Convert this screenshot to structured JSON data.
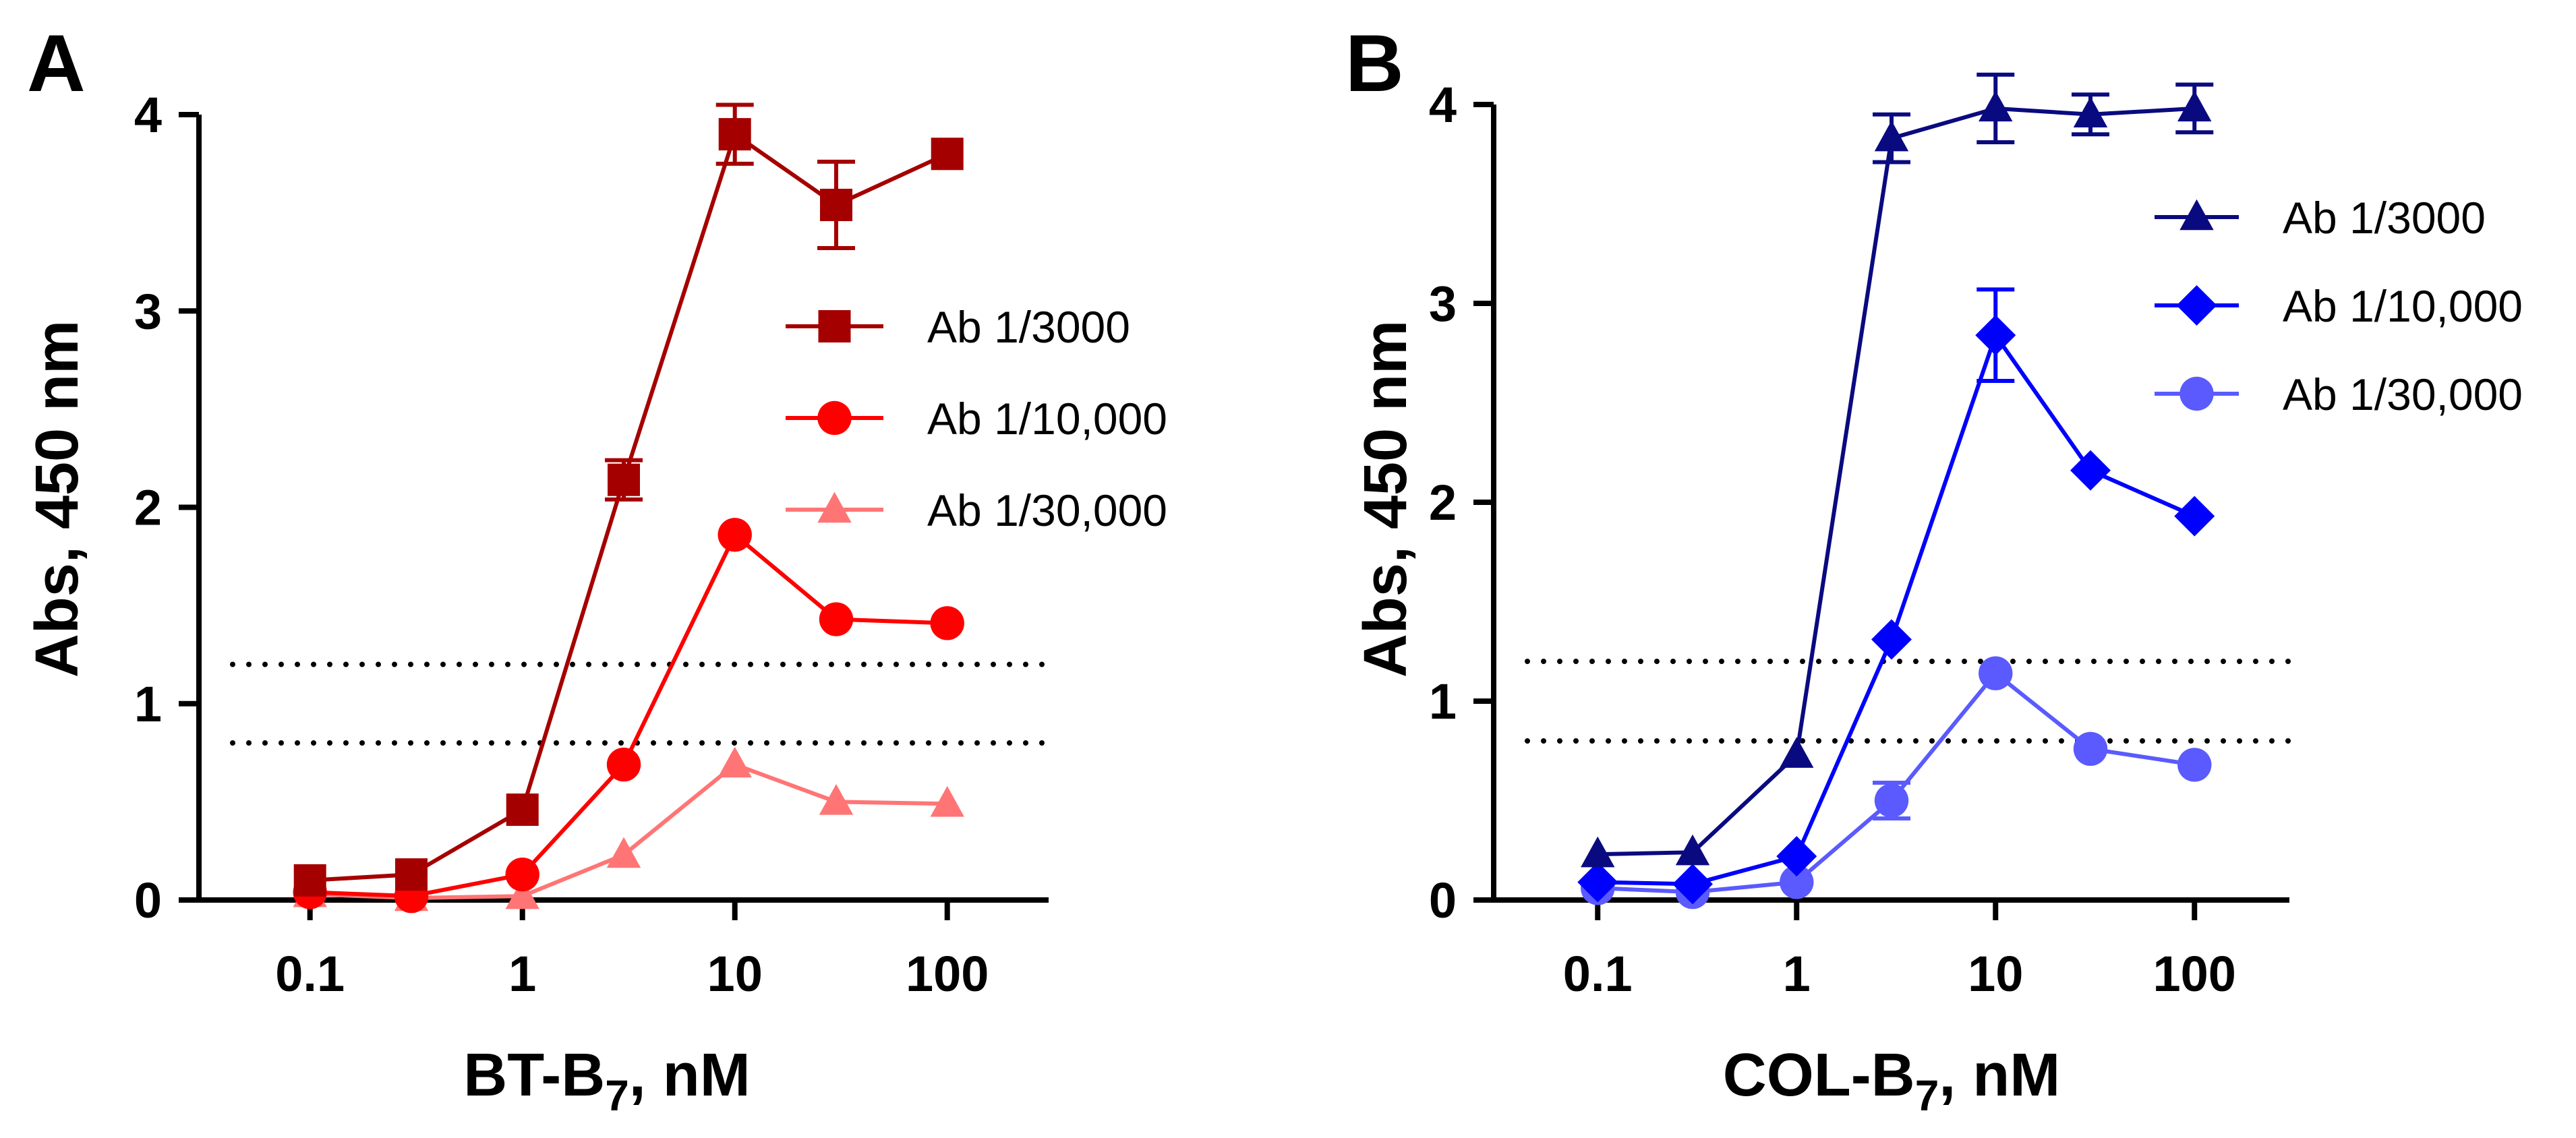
{
  "chart_data": [
    {
      "panel": "A",
      "type": "line",
      "xscale": "log",
      "xlabel": {
        "main": "BT-B",
        "sub": "7",
        "suffix": ", nM"
      },
      "ylabel": "Abs, 450 nm",
      "xlim": [
        0.03,
        300
      ],
      "ylim": [
        0,
        4
      ],
      "x_ticks": [
        0.1,
        1,
        10,
        100
      ],
      "x_tick_labels": [
        "0.1",
        "1",
        "10",
        "100"
      ],
      "y_ticks": [
        0,
        1,
        2,
        3,
        4
      ],
      "y_tick_labels": [
        "0",
        "1",
        "2",
        "3",
        "4"
      ],
      "threshold_lines": [
        1.2,
        0.8
      ],
      "legend_position": "right",
      "x": [
        0.1,
        0.3,
        1,
        3,
        10,
        30,
        100
      ],
      "series": [
        {
          "name": "Ab 1/3000",
          "marker": "square",
          "color": "#a50000",
          "values": [
            0.1,
            0.13,
            0.46,
            2.14,
            3.9,
            3.54,
            3.8
          ],
          "errors": [
            0,
            0,
            0,
            0.1,
            0.15,
            0.22,
            0
          ]
        },
        {
          "name": "Ab 1/10,000",
          "marker": "circle",
          "color": "#ff0000",
          "values": [
            0.04,
            0.02,
            0.13,
            0.69,
            1.86,
            1.43,
            1.41
          ],
          "errors": [
            0,
            0,
            0,
            0,
            0,
            0,
            0
          ]
        },
        {
          "name": "Ab 1/30,000",
          "marker": "triangle",
          "color": "#ff7575",
          "values": [
            0.03,
            0.01,
            0.02,
            0.23,
            0.69,
            0.5,
            0.49
          ],
          "errors": [
            0,
            0,
            0,
            0,
            0,
            0,
            0
          ]
        }
      ]
    },
    {
      "panel": "B",
      "type": "line",
      "xscale": "log",
      "xlabel": {
        "main": "COL-B",
        "sub": "7",
        "suffix": ", nM"
      },
      "ylabel": "Abs, 450 nm",
      "xlim": [
        0.03,
        300
      ],
      "ylim": [
        0,
        4
      ],
      "x_ticks": [
        0.1,
        1,
        10,
        100
      ],
      "x_tick_labels": [
        "0.1",
        "1",
        "10",
        "100"
      ],
      "y_ticks": [
        0,
        1,
        2,
        3,
        4
      ],
      "y_tick_labels": [
        "0",
        "1",
        "2",
        "3",
        "4"
      ],
      "threshold_lines": [
        1.2,
        0.8
      ],
      "legend_position": "top-right",
      "x": [
        0.1,
        0.3,
        1,
        3,
        10,
        30,
        100
      ],
      "series": [
        {
          "name": "Ab 1/3000",
          "marker": "triangle",
          "color": "#0a0a80",
          "values": [
            0.23,
            0.24,
            0.73,
            3.83,
            3.98,
            3.95,
            3.98
          ],
          "errors": [
            0,
            0,
            0,
            0.12,
            0.17,
            0.1,
            0.12
          ]
        },
        {
          "name": "Ab 1/10,000",
          "marker": "diamond",
          "color": "#0000ff",
          "values": [
            0.09,
            0.08,
            0.22,
            1.31,
            2.84,
            2.16,
            1.93
          ],
          "errors": [
            0,
            0,
            0,
            0,
            0.23,
            0,
            0
          ]
        },
        {
          "name": "Ab 1/30,000",
          "marker": "circle",
          "color": "#5a5aff",
          "values": [
            0.06,
            0.04,
            0.09,
            0.5,
            1.14,
            0.76,
            0.68
          ],
          "errors": [
            0,
            0,
            0,
            0.09,
            0,
            0,
            0
          ]
        }
      ]
    }
  ]
}
